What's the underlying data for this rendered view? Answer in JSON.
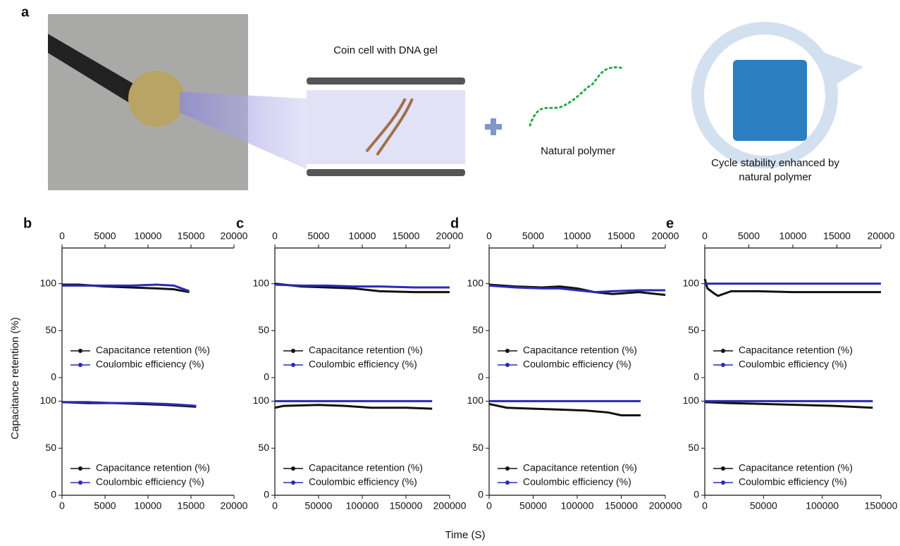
{
  "panel_a": {
    "label": "a",
    "coin_cell": "Coin cell with DNA gel",
    "polymer": "Natural polymer",
    "cycle_line1": "Cycle stability enhanced by",
    "cycle_line2": "natural polymer"
  },
  "y_label": "Capacitance retention (%)",
  "x_label": "Time (S)",
  "chart_data": [
    {
      "type": "line",
      "panel_label": "b",
      "xlim": [
        0,
        20000
      ],
      "xticks": [
        0,
        5000,
        10000,
        15000,
        20000
      ],
      "ylim": [
        0,
        138
      ],
      "yticks": [
        0,
        50,
        100
      ],
      "legend": "lower left",
      "x": [
        0,
        2000,
        5000,
        8000,
        11000,
        13000,
        14800
      ],
      "series": [
        {
          "name": "Capacitance retention (%)",
          "color": "#111111",
          "values": [
            99,
            99,
            97,
            96,
            95,
            94,
            91
          ]
        },
        {
          "name": "Coulombic efficiency (%)",
          "color": "#2a2ab8",
          "values": [
            98,
            98,
            98,
            98,
            99,
            98,
            92
          ]
        }
      ]
    },
    {
      "type": "line",
      "xlim": [
        0,
        20000
      ],
      "xticks": [
        0,
        5000,
        10000,
        15000,
        20000
      ],
      "ylim": [
        0,
        125
      ],
      "yticks": [
        0,
        50,
        100
      ],
      "legend": "lower left",
      "x": [
        0,
        3000,
        6000,
        9000,
        12000,
        14000,
        15600
      ],
      "series": [
        {
          "name": "Capacitance retention (%)",
          "color": "#111111",
          "values": [
            99,
            98,
            98,
            97,
            96,
            95,
            94
          ]
        },
        {
          "name": "Coulombic efficiency (%)",
          "color": "#2a2ab8",
          "values": [
            99,
            99,
            98,
            98,
            97,
            96,
            95
          ]
        }
      ]
    },
    {
      "type": "line",
      "panel_label": "c",
      "xlim": [
        0,
        20000
      ],
      "xticks": [
        0,
        5000,
        10000,
        15000,
        20000
      ],
      "ylim": [
        0,
        138
      ],
      "yticks": [
        0,
        50,
        100
      ],
      "legend": "lower left",
      "x": [
        0,
        3000,
        6000,
        9000,
        12000,
        16000,
        20000
      ],
      "series": [
        {
          "name": "Capacitance retention (%)",
          "color": "#111111",
          "values": [
            100,
            97,
            96,
            95,
            92,
            91,
            91
          ]
        },
        {
          "name": "Coulombic efficiency (%)",
          "color": "#2a2ab8",
          "values": [
            99,
            98,
            98,
            97,
            97,
            96,
            96
          ]
        }
      ]
    },
    {
      "type": "line",
      "xlim": [
        0,
        200000
      ],
      "xticks": [
        0,
        50000,
        100000,
        150000,
        200000
      ],
      "ylim": [
        0,
        125
      ],
      "yticks": [
        0,
        50,
        100
      ],
      "legend": "lower left",
      "x": [
        0,
        10000,
        50000,
        80000,
        110000,
        150000,
        180000
      ],
      "series": [
        {
          "name": "Capacitance retention (%)",
          "color": "#111111",
          "values": [
            93,
            95,
            96,
            95,
            93,
            93,
            92
          ]
        },
        {
          "name": "Coulombic efficiency (%)",
          "color": "#2a2ab8",
          "values": [
            100,
            100,
            100,
            100,
            100,
            100,
            100
          ]
        }
      ]
    },
    {
      "type": "line",
      "panel_label": "d",
      "xlim": [
        0,
        20000
      ],
      "xticks": [
        0,
        5000,
        10000,
        15000,
        20000
      ],
      "ylim": [
        0,
        138
      ],
      "yticks": [
        0,
        50,
        100
      ],
      "legend": "lower left",
      "x": [
        0,
        3000,
        6000,
        8000,
        10000,
        12000,
        14000,
        17000,
        20000
      ],
      "series": [
        {
          "name": "Capacitance retention (%)",
          "color": "#111111",
          "values": [
            99,
            97,
            96,
            97,
            95,
            91,
            89,
            91,
            88
          ]
        },
        {
          "name": "Coulombic efficiency (%)",
          "color": "#2a2ab8",
          "values": [
            98,
            96,
            95,
            95,
            93,
            91,
            92,
            93,
            93
          ]
        }
      ]
    },
    {
      "type": "line",
      "xlim": [
        0,
        200000
      ],
      "xticks": [
        0,
        50000,
        100000,
        150000,
        200000
      ],
      "ylim": [
        0,
        125
      ],
      "yticks": [
        0,
        50,
        100
      ],
      "legend": "lower left",
      "x": [
        0,
        20000,
        50000,
        80000,
        110000,
        135000,
        150000,
        172000
      ],
      "series": [
        {
          "name": "Capacitance retention (%)",
          "color": "#111111",
          "values": [
            97,
            93,
            92,
            91,
            90,
            88,
            85,
            85
          ]
        },
        {
          "name": "Coulombic efficiency (%)",
          "color": "#2a2ab8",
          "values": [
            100,
            100,
            100,
            100,
            100,
            100,
            100,
            100
          ]
        }
      ]
    },
    {
      "type": "line",
      "panel_label": "e",
      "xlim": [
        0,
        20000
      ],
      "xticks": [
        0,
        5000,
        10000,
        15000,
        20000
      ],
      "ylim": [
        0,
        138
      ],
      "yticks": [
        0,
        50,
        100
      ],
      "legend": "lower left",
      "x": [
        0,
        300,
        1000,
        1500,
        3000,
        6000,
        10000,
        15000,
        20000
      ],
      "series": [
        {
          "name": "Capacitance retention (%)",
          "color": "#111111",
          "values": [
            105,
            95,
            90,
            87,
            92,
            92,
            91,
            91,
            91
          ]
        },
        {
          "name": "Coulombic efficiency (%)",
          "color": "#2a2ab8",
          "values": [
            100,
            100,
            100,
            100,
            100,
            100,
            100,
            100,
            100
          ]
        }
      ]
    },
    {
      "type": "line",
      "xlim": [
        0,
        150000
      ],
      "xticks": [
        0,
        50000,
        100000,
        150000
      ],
      "ylim": [
        0,
        125
      ],
      "yticks": [
        0,
        50,
        100
      ],
      "legend": "lower left",
      "x": [
        0,
        20000,
        50000,
        80000,
        110000,
        143000
      ],
      "series": [
        {
          "name": "Capacitance retention (%)",
          "color": "#111111",
          "values": [
            99,
            98,
            97,
            96,
            95,
            93
          ]
        },
        {
          "name": "Coulombic efficiency (%)",
          "color": "#2a2ab8",
          "values": [
            100,
            100,
            100,
            100,
            100,
            100
          ]
        }
      ]
    }
  ]
}
